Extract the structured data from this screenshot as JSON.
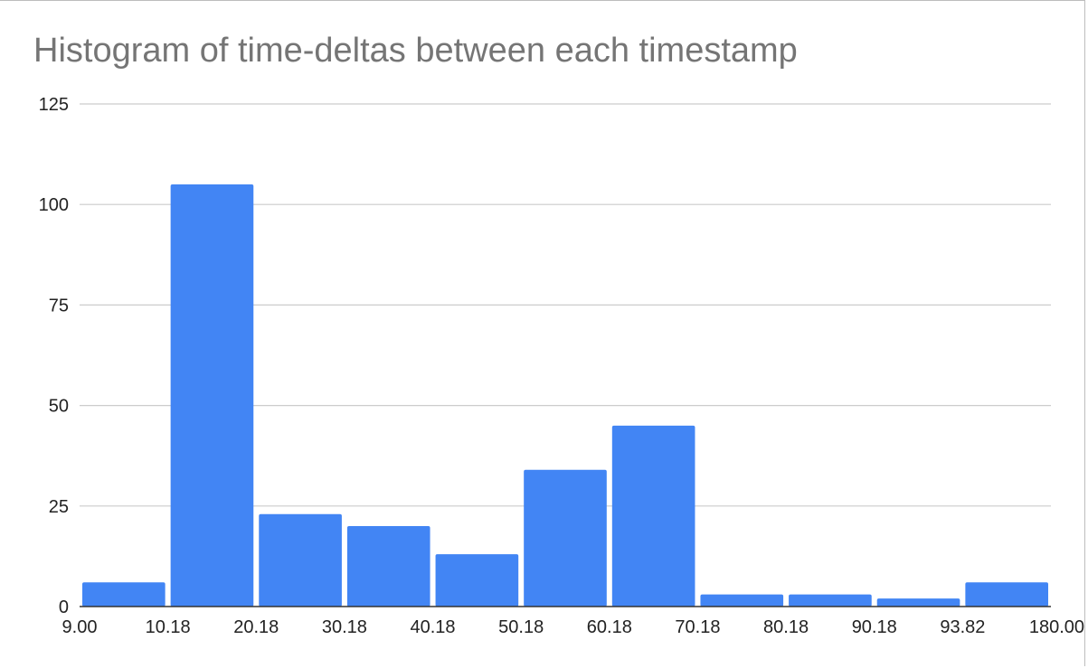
{
  "chart_data": {
    "type": "bar",
    "title": "Histogram of time-deltas between each timestamp",
    "bin_edges": [
      "9.00",
      "10.18",
      "20.18",
      "30.18",
      "40.18",
      "50.18",
      "60.18",
      "70.18",
      "80.18",
      "90.18",
      "93.82",
      "180.00"
    ],
    "values": [
      6,
      105,
      23,
      20,
      13,
      34,
      45,
      3,
      3,
      2,
      6
    ],
    "ylim": [
      0,
      125
    ],
    "yticks": [
      0,
      25,
      50,
      75,
      100,
      125
    ],
    "grid": true,
    "legend": "none",
    "bar_color": "#4285f4",
    "grid_color": "#cccccc",
    "axis_color": "#333333"
  }
}
